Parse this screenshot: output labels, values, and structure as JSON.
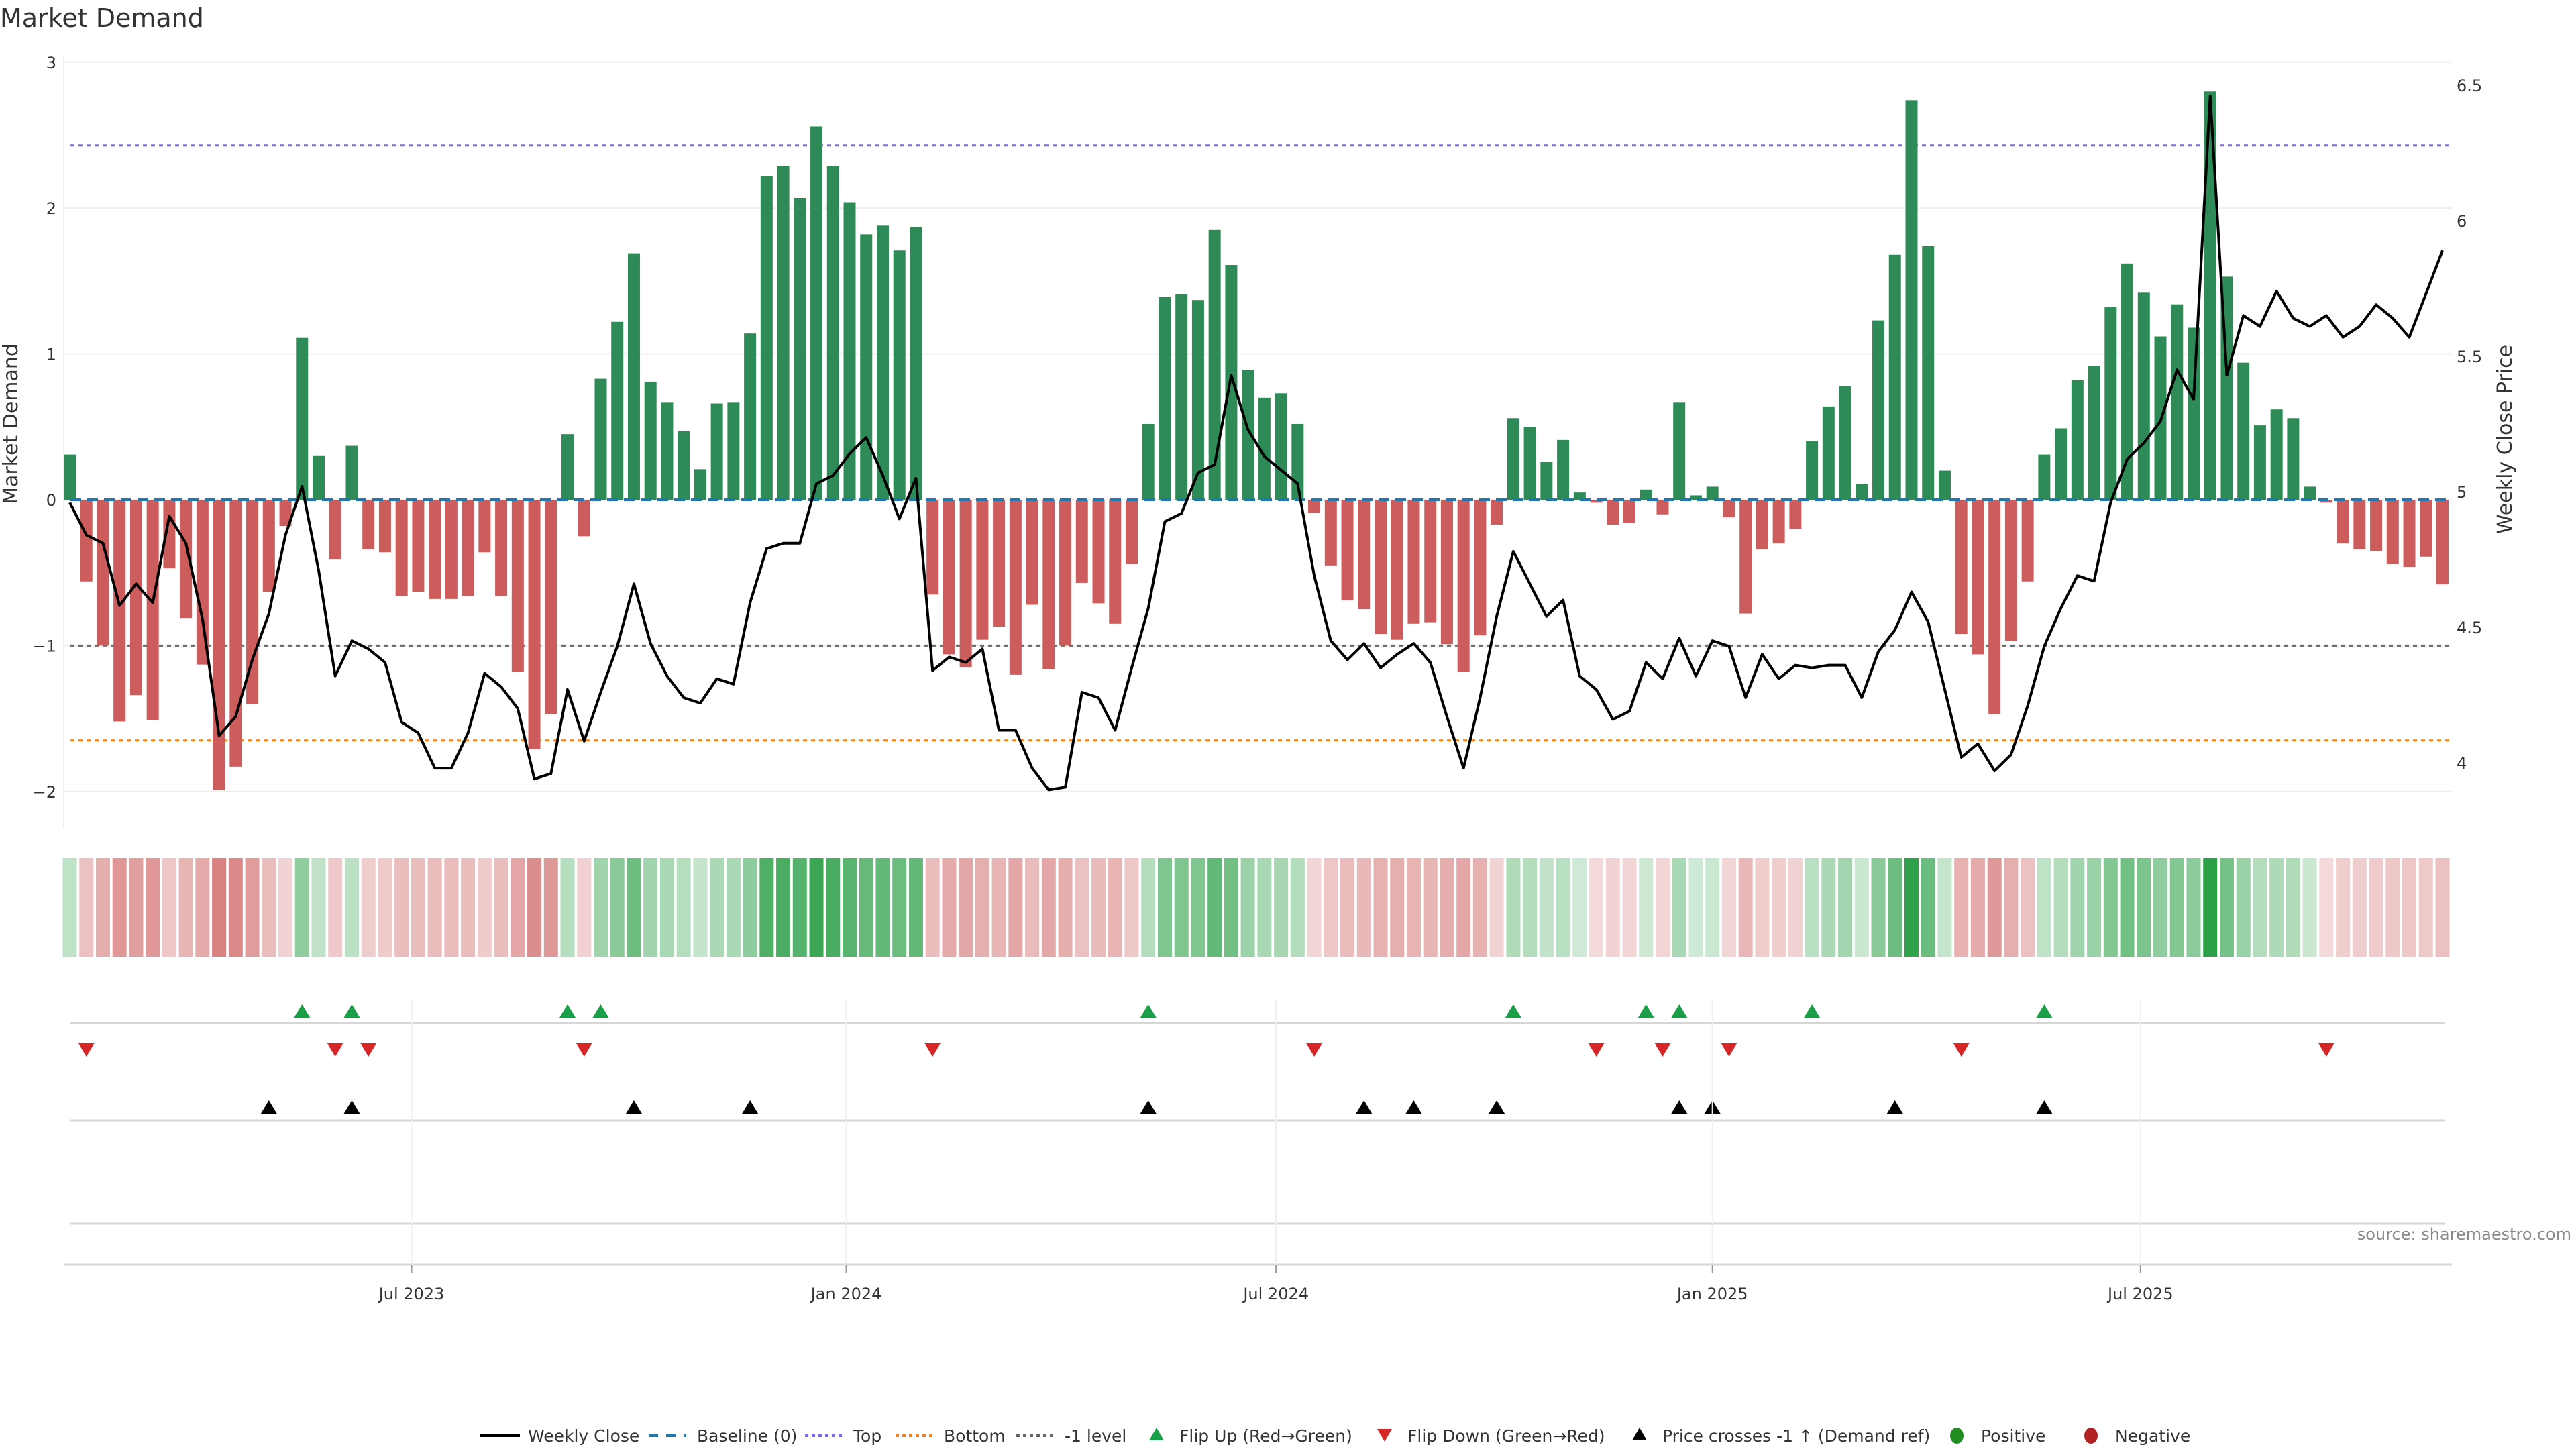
{
  "chart_data": {
    "type": "bar",
    "title": "Market Demand",
    "ylabel": "Market Demand",
    "y2label": "Weekly Close Price",
    "xlabel": "",
    "ylim": [
      -2.25,
      3
    ],
    "y2lim": [
      3.85,
      6.57
    ],
    "yticks": [
      "3",
      "2",
      "1",
      "0",
      "−1",
      "−2"
    ],
    "ytick_values": [
      3,
      2,
      1,
      0,
      -1,
      -2
    ],
    "y2ticks": [
      "6.5",
      "6",
      "5.5",
      "5",
      "4.5",
      "4"
    ],
    "y2tick_values": [
      6.5,
      6,
      5.5,
      5,
      4.5,
      4
    ],
    "xticks": [
      "Jul 2023",
      "Jan 2024",
      "Jul 2024",
      "Jan 2025",
      "Jul 2025"
    ],
    "xtick_weeks": [
      21.6,
      47.8,
      73.7,
      100.0,
      125.8
    ],
    "start_week": "2023-01-30",
    "frequency": "weekly",
    "grid": true,
    "legend_position": "bottom-center",
    "colors": {
      "positive_bar": "#2e8b57",
      "negative_bar": "#cd5c5c",
      "price_line": "#000000",
      "baseline": "#1f77b4",
      "top": "#7b68ee",
      "bottom": "#ff7f0e",
      "minus_one": "#666666",
      "flip_up": "#1a9e48",
      "flip_down": "#d62728",
      "price_cross": "#000000",
      "heat_positive": "#2ca048",
      "heat_negative": "#cd5c5c",
      "legend_positive": "#228b22",
      "legend_negative": "#b22222"
    },
    "reference_lines": {
      "baseline": 0,
      "top": 2.43,
      "bottom": -1.65,
      "minus_one": -1
    },
    "series": [
      {
        "name": "Market Demand",
        "axis": "left",
        "kind": "bar",
        "values": [
          0.31,
          -0.56,
          -1.0,
          -1.52,
          -1.34,
          -1.51,
          -0.47,
          -0.81,
          -1.13,
          -1.99,
          -1.83,
          -1.4,
          -0.63,
          -0.18,
          1.11,
          0.3,
          -0.41,
          0.37,
          -0.34,
          -0.36,
          -0.66,
          -0.63,
          -0.68,
          -0.68,
          -0.66,
          -0.36,
          -0.66,
          -1.18,
          -1.71,
          -1.47,
          0.45,
          -0.25,
          0.83,
          1.22,
          1.69,
          0.81,
          0.67,
          0.47,
          0.21,
          0.66,
          0.67,
          1.14,
          2.22,
          2.29,
          2.07,
          2.56,
          2.29,
          2.04,
          1.82,
          1.88,
          1.71,
          1.87,
          -0.65,
          -1.06,
          -1.15,
          -0.96,
          -0.87,
          -1.2,
          -0.72,
          -1.16,
          -1.0,
          -0.57,
          -0.71,
          -0.85,
          -0.44,
          0.52,
          1.39,
          1.41,
          1.37,
          1.85,
          1.61,
          0.89,
          0.7,
          0.73,
          0.52,
          -0.09,
          -0.45,
          -0.69,
          -0.75,
          -0.92,
          -0.96,
          -0.85,
          -0.84,
          -0.99,
          -1.18,
          -0.93,
          -0.17,
          0.56,
          0.5,
          0.26,
          0.41,
          0.05,
          -0.02,
          -0.17,
          -0.16,
          0.07,
          -0.1,
          0.67,
          0.03,
          0.09,
          -0.12,
          -0.78,
          -0.34,
          -0.3,
          -0.2,
          0.4,
          0.64,
          0.78,
          0.11,
          1.23,
          1.68,
          2.74,
          1.74,
          0.2,
          -0.92,
          -1.06,
          -1.47,
          -0.97,
          -0.56,
          0.31,
          0.49,
          0.82,
          0.92,
          1.32,
          1.62,
          1.42,
          1.12,
          1.34,
          1.18,
          2.8,
          1.53,
          0.94,
          0.51,
          0.62,
          0.56,
          0.09,
          -0.02,
          -0.3,
          -0.34,
          -0.35,
          -0.44,
          -0.46,
          -0.39,
          -0.58
        ]
      },
      {
        "name": "Weekly Close",
        "axis": "right",
        "kind": "line",
        "values": [
          4.96,
          4.84,
          4.81,
          4.58,
          4.66,
          4.59,
          4.91,
          4.81,
          4.53,
          4.1,
          4.17,
          4.38,
          4.55,
          4.84,
          5.02,
          4.71,
          4.32,
          4.45,
          4.42,
          4.37,
          4.15,
          4.11,
          3.98,
          3.98,
          4.11,
          4.33,
          4.28,
          4.2,
          3.94,
          3.96,
          4.27,
          4.08,
          4.26,
          4.43,
          4.66,
          4.44,
          4.32,
          4.24,
          4.22,
          4.31,
          4.29,
          4.59,
          4.79,
          4.81,
          4.81,
          5.03,
          5.06,
          5.14,
          5.2,
          5.06,
          4.9,
          5.05,
          4.34,
          4.39,
          4.37,
          4.42,
          4.12,
          4.12,
          3.98,
          3.9,
          3.91,
          4.26,
          4.24,
          4.12,
          4.35,
          4.57,
          4.89,
          4.92,
          5.07,
          5.1,
          5.43,
          5.23,
          5.13,
          5.08,
          5.03,
          4.69,
          4.45,
          4.38,
          4.44,
          4.35,
          4.4,
          4.44,
          4.37,
          4.17,
          3.98,
          4.24,
          4.54,
          4.78,
          4.66,
          4.54,
          4.6,
          4.32,
          4.27,
          4.16,
          4.19,
          4.37,
          4.31,
          4.46,
          4.32,
          4.45,
          4.43,
          4.24,
          4.4,
          4.31,
          4.36,
          4.35,
          4.36,
          4.36,
          4.24,
          4.41,
          4.49,
          4.63,
          4.52,
          4.27,
          4.02,
          4.07,
          3.97,
          4.03,
          4.21,
          4.43,
          4.57,
          4.69,
          4.67,
          4.96,
          5.12,
          5.18,
          5.26,
          5.45,
          5.34,
          6.46,
          5.43,
          5.65,
          5.61,
          5.74,
          5.64,
          5.61,
          5.65,
          5.57,
          5.61,
          5.69,
          5.64,
          5.57,
          5.73,
          5.89
        ]
      }
    ],
    "events": {
      "flip_up_weeks": [
        15,
        18,
        31,
        33,
        66,
        88,
        96,
        98,
        106,
        120
      ],
      "flip_down_weeks": [
        2,
        17,
        19,
        32,
        53,
        76,
        93,
        97,
        101,
        115,
        137
      ],
      "price_cross_weeks": [
        13,
        18,
        35,
        42,
        66,
        79,
        82,
        87,
        98,
        100,
        111,
        120
      ]
    },
    "legend": [
      {
        "label": "Weekly Close",
        "style": "line"
      },
      {
        "label": "Baseline (0)",
        "style": "dash"
      },
      {
        "label": "Top",
        "style": "dot"
      },
      {
        "label": "Bottom",
        "style": "dot"
      },
      {
        "label": "-1 level",
        "style": "dot"
      },
      {
        "label": "Flip Up (Red→Green)",
        "style": "triangle-up"
      },
      {
        "label": "Flip Down (Green→Red)",
        "style": "triangle-down"
      },
      {
        "label": "Price crosses -1 ↑ (Demand ref)",
        "style": "triangle-up"
      },
      {
        "label": "Positive",
        "style": "circle"
      },
      {
        "label": "Negative",
        "style": "circle"
      }
    ],
    "source": "source: sharemaestro.com"
  }
}
